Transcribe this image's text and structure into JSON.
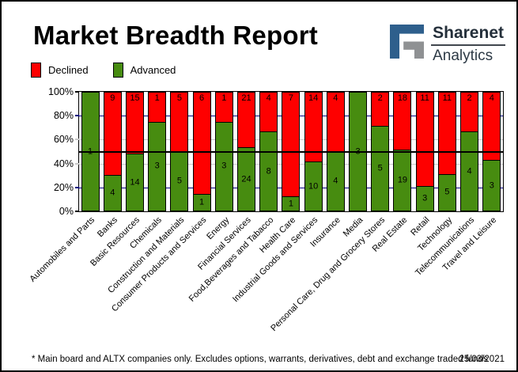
{
  "header": {
    "title": "Market Breadth Report",
    "logo": {
      "brand": "Sharenet",
      "sub": "Analytics",
      "blue": "#2e5f8c",
      "gray": "#8f9193"
    }
  },
  "legend": [
    {
      "label": "Declined",
      "color": "#fe0000"
    },
    {
      "label": "Advanced",
      "color": "#478c10"
    }
  ],
  "chart_data": {
    "type": "bar",
    "stacked": "100%",
    "title": "Market Breadth Report",
    "categories": [
      "Automobiles and Parts",
      "Banks",
      "Basic Resources",
      "Chemicals",
      "Construction and Materials",
      "Consumer Products and Services",
      "Energy",
      "Financial Services",
      "Food,Beverages and Tabacco",
      "Health Care",
      "Industrial Goods and Services",
      "Insurance",
      "Media",
      "Personal Care, Drug and Grocery Stores",
      "Real Estate",
      "Retail",
      "Technology",
      "Telecommunications",
      "Travel and Leisure"
    ],
    "series": [
      {
        "name": "Declined",
        "color": "#fe0000",
        "values": [
          0,
          9,
          15,
          1,
          5,
          6,
          1,
          21,
          4,
          7,
          14,
          4,
          0,
          2,
          18,
          11,
          11,
          2,
          4
        ]
      },
      {
        "name": "Advanced",
        "color": "#478c10",
        "values": [
          1,
          4,
          14,
          3,
          5,
          1,
          3,
          24,
          8,
          1,
          10,
          4,
          3,
          5,
          19,
          3,
          5,
          4,
          3
        ]
      }
    ],
    "y_axis": {
      "ticks": [
        {
          "label": "100%",
          "value": 100,
          "dash_color": "#000000"
        },
        {
          "label": "80%",
          "value": 80,
          "dash_color": "#000080"
        },
        {
          "label": "60%",
          "value": 60,
          "dash_color": "#c9c9c9"
        },
        {
          "label": "40%",
          "value": 40,
          "dash_color": "#c9c9c9"
        },
        {
          "label": "20%",
          "value": 20,
          "dash_color": "#000080"
        },
        {
          "label": "0%",
          "value": 0,
          "dash_color": "#000000"
        }
      ],
      "ylim": [
        0,
        100
      ]
    },
    "gridlines": [
      {
        "value": 80,
        "color": "#000080",
        "over": false
      },
      {
        "value": 60,
        "color": "#c9c9c9",
        "over": false
      },
      {
        "value": 50,
        "color": "#000000",
        "over": true
      },
      {
        "value": 40,
        "color": "#c9c9c9",
        "over": false
      },
      {
        "value": 20,
        "color": "#000080",
        "over": false
      }
    ],
    "legend_position": "top-left",
    "bar_label_style": "declined count at top of red segment, advanced count centered in green segment"
  },
  "footer": {
    "note": "* Main board and ALTX companies only. Excludes options, warrants, derivatives, debt and exchange traded funds",
    "date": "25/03/2021"
  }
}
